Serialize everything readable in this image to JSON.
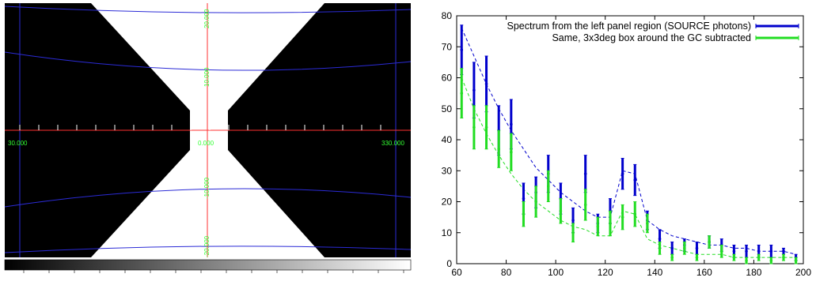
{
  "sky_map": {
    "longitude_labels": {
      "left": "30.000",
      "center": "0.000",
      "right": "330.000"
    },
    "latitude_labels": {
      "top": "20.000",
      "upper": "10.000",
      "lower": "-10.000",
      "bottom": "-20.000"
    },
    "colors": {
      "background": "#000000",
      "region": "#ffffff",
      "grid": "#2b2bd6",
      "axes": "#ff3030",
      "labels": "#33ff33"
    }
  },
  "chart_data": {
    "type": "line",
    "title": "",
    "xlabel": "",
    "ylabel": "",
    "xlim": [
      60,
      200
    ],
    "ylim": [
      0,
      80
    ],
    "xticks": [
      60,
      80,
      100,
      120,
      140,
      160,
      180,
      200
    ],
    "yticks": [
      0,
      10,
      20,
      30,
      40,
      50,
      60,
      70,
      80
    ],
    "grid": false,
    "legend_position": "top-right",
    "series": [
      {
        "name": "Spectrum from the left panel region (SOURCE photons)",
        "color": "#0000cc",
        "x": [
          62,
          67,
          72,
          77,
          82,
          87,
          92,
          97,
          102,
          107,
          112,
          117,
          122,
          127,
          132,
          137,
          142,
          147,
          152,
          157,
          162,
          167,
          172,
          177,
          182,
          187,
          192,
          197
        ],
        "y": [
          69,
          56,
          58,
          43,
          45,
          21,
          23,
          29,
          21,
          14,
          29,
          13,
          17,
          29,
          27,
          14,
          8,
          5,
          6,
          5,
          7,
          6,
          4,
          4,
          4,
          4,
          4,
          2
        ],
        "err": [
          8,
          9,
          9,
          8,
          8,
          5,
          5,
          6,
          5,
          4,
          6,
          3,
          4,
          5,
          5,
          3,
          3,
          2,
          2,
          2,
          2,
          2,
          2,
          2,
          2,
          2,
          1,
          1
        ],
        "fit": [
          76,
          67,
          58,
          50,
          43,
          37,
          31,
          27,
          23,
          20,
          17,
          15,
          15,
          30,
          29,
          14,
          11,
          9,
          8,
          7,
          6,
          6,
          5,
          5,
          4,
          4,
          4,
          3
        ]
      },
      {
        "name": "Same, 3x3deg box around the GC subtracted",
        "color": "#22dd22",
        "x": [
          62,
          67,
          72,
          77,
          82,
          87,
          92,
          97,
          102,
          107,
          112,
          117,
          122,
          127,
          132,
          137,
          142,
          147,
          152,
          157,
          162,
          167,
          172,
          177,
          182,
          187,
          192,
          197
        ],
        "y": [
          55,
          44,
          44,
          37,
          36,
          16,
          20,
          25,
          17,
          10,
          19,
          12,
          13,
          15,
          16,
          13,
          5,
          2,
          5,
          2,
          7,
          4,
          2,
          1,
          2,
          1,
          2,
          1
        ],
        "err": [
          8,
          7,
          7,
          6,
          6,
          4,
          5,
          5,
          4,
          3,
          5,
          3,
          4,
          4,
          4,
          3,
          2,
          1,
          2,
          1,
          2,
          2,
          1,
          1,
          1,
          1,
          1,
          1
        ],
        "fit": [
          60,
          50,
          42,
          35,
          29,
          24,
          20,
          17,
          14,
          12,
          11,
          9,
          9,
          17,
          16,
          8,
          6,
          5,
          4,
          3,
          3,
          3,
          2,
          2,
          2,
          2,
          2,
          2
        ]
      }
    ]
  }
}
